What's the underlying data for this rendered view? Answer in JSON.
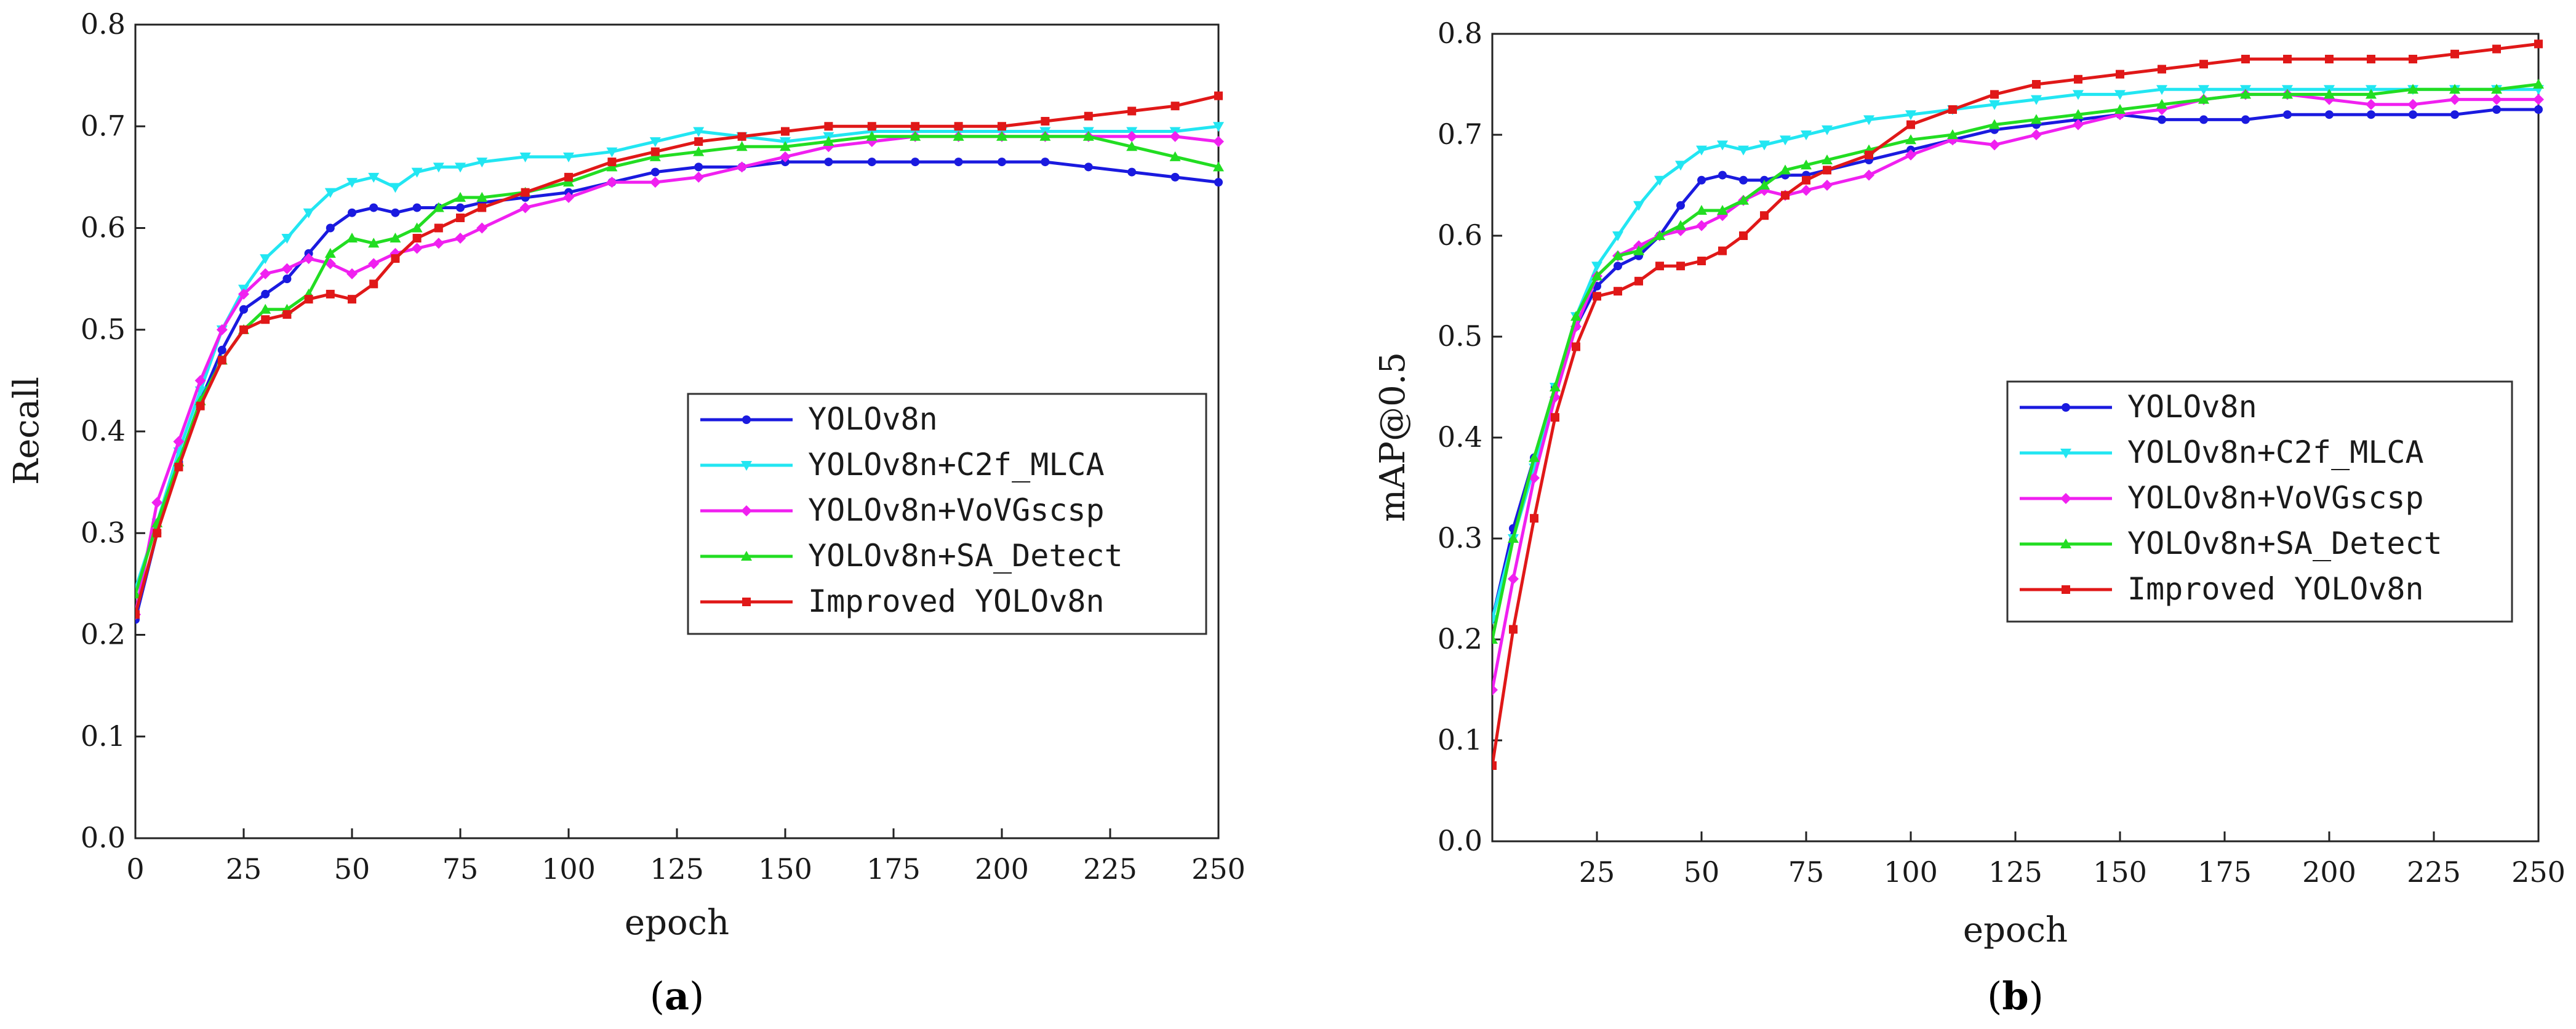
{
  "chart_data": [
    {
      "type": "line",
      "caption": "a",
      "xlabel": "epoch",
      "ylabel": "Recall",
      "xlim": [
        0,
        250
      ],
      "ylim": [
        0.0,
        0.8
      ],
      "xticks": [
        0,
        25,
        50,
        75,
        100,
        125,
        150,
        175,
        200,
        225,
        250
      ],
      "yticks": [
        0.0,
        0.1,
        0.2,
        0.3,
        0.4,
        0.5,
        0.6,
        0.7,
        0.8
      ],
      "grid": false,
      "legend_position": "center-right",
      "series": [
        {
          "name": "YOLOv8n",
          "color": "#1a1adf",
          "marker": "circle",
          "x": [
            0,
            5,
            10,
            15,
            20,
            25,
            30,
            35,
            40,
            45,
            50,
            55,
            60,
            65,
            70,
            75,
            80,
            90,
            100,
            110,
            120,
            130,
            140,
            150,
            160,
            170,
            180,
            190,
            200,
            210,
            220,
            230,
            240,
            250
          ],
          "y": [
            0.215,
            0.3,
            0.37,
            0.43,
            0.48,
            0.52,
            0.535,
            0.55,
            0.575,
            0.6,
            0.615,
            0.62,
            0.615,
            0.62,
            0.62,
            0.62,
            0.625,
            0.63,
            0.635,
            0.645,
            0.655,
            0.66,
            0.66,
            0.665,
            0.665,
            0.665,
            0.665,
            0.665,
            0.665,
            0.665,
            0.66,
            0.655,
            0.65,
            0.645
          ]
        },
        {
          "name": "YOLOv8n+C2f_MLCA",
          "color": "#22e6f2",
          "marker": "triangle-down",
          "x": [
            0,
            5,
            10,
            15,
            20,
            25,
            30,
            35,
            40,
            45,
            50,
            55,
            60,
            65,
            70,
            75,
            80,
            90,
            100,
            110,
            120,
            130,
            140,
            150,
            160,
            170,
            180,
            190,
            200,
            210,
            220,
            230,
            240,
            250
          ],
          "y": [
            0.245,
            0.31,
            0.38,
            0.44,
            0.5,
            0.54,
            0.57,
            0.59,
            0.615,
            0.635,
            0.645,
            0.65,
            0.64,
            0.655,
            0.66,
            0.66,
            0.665,
            0.67,
            0.67,
            0.675,
            0.685,
            0.695,
            0.69,
            0.685,
            0.69,
            0.695,
            0.695,
            0.695,
            0.695,
            0.695,
            0.695,
            0.695,
            0.695,
            0.7
          ]
        },
        {
          "name": "YOLOv8n+VoVGscsp",
          "color": "#f020f0",
          "marker": "diamond",
          "x": [
            0,
            5,
            10,
            15,
            20,
            25,
            30,
            35,
            40,
            45,
            50,
            55,
            60,
            65,
            70,
            75,
            80,
            90,
            100,
            110,
            120,
            130,
            140,
            150,
            160,
            170,
            180,
            190,
            200,
            210,
            220,
            230,
            240,
            250
          ],
          "y": [
            0.22,
            0.33,
            0.39,
            0.45,
            0.5,
            0.535,
            0.555,
            0.56,
            0.57,
            0.565,
            0.555,
            0.565,
            0.575,
            0.58,
            0.585,
            0.59,
            0.6,
            0.62,
            0.63,
            0.645,
            0.645,
            0.65,
            0.66,
            0.67,
            0.68,
            0.685,
            0.69,
            0.69,
            0.69,
            0.69,
            0.69,
            0.69,
            0.69,
            0.685
          ]
        },
        {
          "name": "YOLOv8n+SA_Detect",
          "color": "#22dd22",
          "marker": "triangle-up",
          "x": [
            0,
            5,
            10,
            15,
            20,
            25,
            30,
            35,
            40,
            45,
            50,
            55,
            60,
            65,
            70,
            75,
            80,
            90,
            100,
            110,
            120,
            130,
            140,
            150,
            160,
            170,
            180,
            190,
            200,
            210,
            220,
            230,
            240,
            250
          ],
          "y": [
            0.24,
            0.31,
            0.37,
            0.43,
            0.47,
            0.5,
            0.52,
            0.52,
            0.535,
            0.575,
            0.59,
            0.585,
            0.59,
            0.6,
            0.62,
            0.63,
            0.63,
            0.635,
            0.645,
            0.66,
            0.67,
            0.675,
            0.68,
            0.68,
            0.685,
            0.69,
            0.69,
            0.69,
            0.69,
            0.69,
            0.69,
            0.68,
            0.67,
            0.66
          ]
        },
        {
          "name": "Improved YOLOv8n",
          "color": "#e01818",
          "marker": "square",
          "x": [
            0,
            5,
            10,
            15,
            20,
            25,
            30,
            35,
            40,
            45,
            50,
            55,
            60,
            65,
            70,
            75,
            80,
            90,
            100,
            110,
            120,
            130,
            140,
            150,
            160,
            170,
            180,
            190,
            200,
            210,
            220,
            230,
            240,
            250
          ],
          "y": [
            0.22,
            0.3,
            0.365,
            0.425,
            0.47,
            0.5,
            0.51,
            0.515,
            0.53,
            0.535,
            0.53,
            0.545,
            0.57,
            0.59,
            0.6,
            0.61,
            0.62,
            0.635,
            0.65,
            0.665,
            0.675,
            0.685,
            0.69,
            0.695,
            0.7,
            0.7,
            0.7,
            0.7,
            0.7,
            0.705,
            0.71,
            0.715,
            0.72,
            0.73
          ]
        }
      ]
    },
    {
      "type": "line",
      "caption": "b",
      "xlabel": "epoch",
      "ylabel": "mAP@0.5",
      "xlim": [
        0,
        250
      ],
      "ylim": [
        0.0,
        0.8
      ],
      "xticks": [
        25,
        50,
        75,
        100,
        125,
        150,
        175,
        200,
        225,
        250
      ],
      "yticks": [
        0.0,
        0.1,
        0.2,
        0.3,
        0.4,
        0.5,
        0.6,
        0.7,
        0.8
      ],
      "grid": false,
      "legend_position": "center-right",
      "series": [
        {
          "name": "YOLOv8n",
          "color": "#1a1adf",
          "marker": "circle",
          "x": [
            0,
            5,
            10,
            15,
            20,
            25,
            30,
            35,
            40,
            45,
            50,
            55,
            60,
            65,
            70,
            75,
            80,
            90,
            100,
            110,
            120,
            130,
            140,
            150,
            160,
            170,
            180,
            190,
            200,
            210,
            220,
            230,
            240,
            250
          ],
          "y": [
            0.22,
            0.31,
            0.38,
            0.45,
            0.51,
            0.55,
            0.57,
            0.58,
            0.6,
            0.63,
            0.655,
            0.66,
            0.655,
            0.655,
            0.66,
            0.66,
            0.665,
            0.675,
            0.685,
            0.695,
            0.705,
            0.71,
            0.715,
            0.72,
            0.715,
            0.715,
            0.715,
            0.72,
            0.72,
            0.72,
            0.72,
            0.72,
            0.725,
            0.725
          ]
        },
        {
          "name": "YOLOv8n+C2f_MLCA",
          "color": "#22e6f2",
          "marker": "triangle-down",
          "x": [
            0,
            5,
            10,
            15,
            20,
            25,
            30,
            35,
            40,
            45,
            50,
            55,
            60,
            65,
            70,
            75,
            80,
            90,
            100,
            110,
            120,
            130,
            140,
            150,
            160,
            170,
            180,
            190,
            200,
            210,
            220,
            230,
            240,
            250
          ],
          "y": [
            0.22,
            0.3,
            0.37,
            0.45,
            0.52,
            0.57,
            0.6,
            0.63,
            0.655,
            0.67,
            0.685,
            0.69,
            0.685,
            0.69,
            0.695,
            0.7,
            0.705,
            0.715,
            0.72,
            0.725,
            0.73,
            0.735,
            0.74,
            0.74,
            0.745,
            0.745,
            0.745,
            0.745,
            0.745,
            0.745,
            0.745,
            0.745,
            0.745,
            0.745
          ]
        },
        {
          "name": "YOLOv8n+VoVGscsp",
          "color": "#f020f0",
          "marker": "diamond",
          "x": [
            0,
            5,
            10,
            15,
            20,
            25,
            30,
            35,
            40,
            45,
            50,
            55,
            60,
            65,
            70,
            75,
            80,
            90,
            100,
            110,
            120,
            130,
            140,
            150,
            160,
            170,
            180,
            190,
            200,
            210,
            220,
            230,
            240,
            250
          ],
          "y": [
            0.15,
            0.26,
            0.36,
            0.44,
            0.51,
            0.56,
            0.58,
            0.59,
            0.6,
            0.605,
            0.61,
            0.62,
            0.635,
            0.645,
            0.64,
            0.645,
            0.65,
            0.66,
            0.68,
            0.695,
            0.69,
            0.7,
            0.71,
            0.72,
            0.725,
            0.735,
            0.74,
            0.74,
            0.735,
            0.73,
            0.73,
            0.735,
            0.735,
            0.735
          ]
        },
        {
          "name": "YOLOv8n+SA_Detect",
          "color": "#22dd22",
          "marker": "triangle-up",
          "x": [
            0,
            5,
            10,
            15,
            20,
            25,
            30,
            35,
            40,
            45,
            50,
            55,
            60,
            65,
            70,
            75,
            80,
            90,
            100,
            110,
            120,
            130,
            140,
            150,
            160,
            170,
            180,
            190,
            200,
            210,
            220,
            230,
            240,
            250
          ],
          "y": [
            0.2,
            0.3,
            0.38,
            0.45,
            0.52,
            0.56,
            0.58,
            0.585,
            0.6,
            0.61,
            0.625,
            0.625,
            0.635,
            0.65,
            0.665,
            0.67,
            0.675,
            0.685,
            0.695,
            0.7,
            0.71,
            0.715,
            0.72,
            0.725,
            0.73,
            0.735,
            0.74,
            0.74,
            0.74,
            0.74,
            0.745,
            0.745,
            0.745,
            0.75
          ]
        },
        {
          "name": "Improved YOLOv8n",
          "color": "#e01818",
          "marker": "square",
          "x": [
            0,
            5,
            10,
            15,
            20,
            25,
            30,
            35,
            40,
            45,
            50,
            55,
            60,
            65,
            70,
            75,
            80,
            90,
            100,
            110,
            120,
            130,
            140,
            150,
            160,
            170,
            180,
            190,
            200,
            210,
            220,
            230,
            240,
            250
          ],
          "y": [
            0.075,
            0.21,
            0.32,
            0.42,
            0.49,
            0.54,
            0.545,
            0.555,
            0.57,
            0.57,
            0.575,
            0.585,
            0.6,
            0.62,
            0.64,
            0.655,
            0.665,
            0.68,
            0.71,
            0.725,
            0.74,
            0.75,
            0.755,
            0.76,
            0.765,
            0.77,
            0.775,
            0.775,
            0.775,
            0.775,
            0.775,
            0.78,
            0.785,
            0.79
          ]
        }
      ]
    }
  ]
}
